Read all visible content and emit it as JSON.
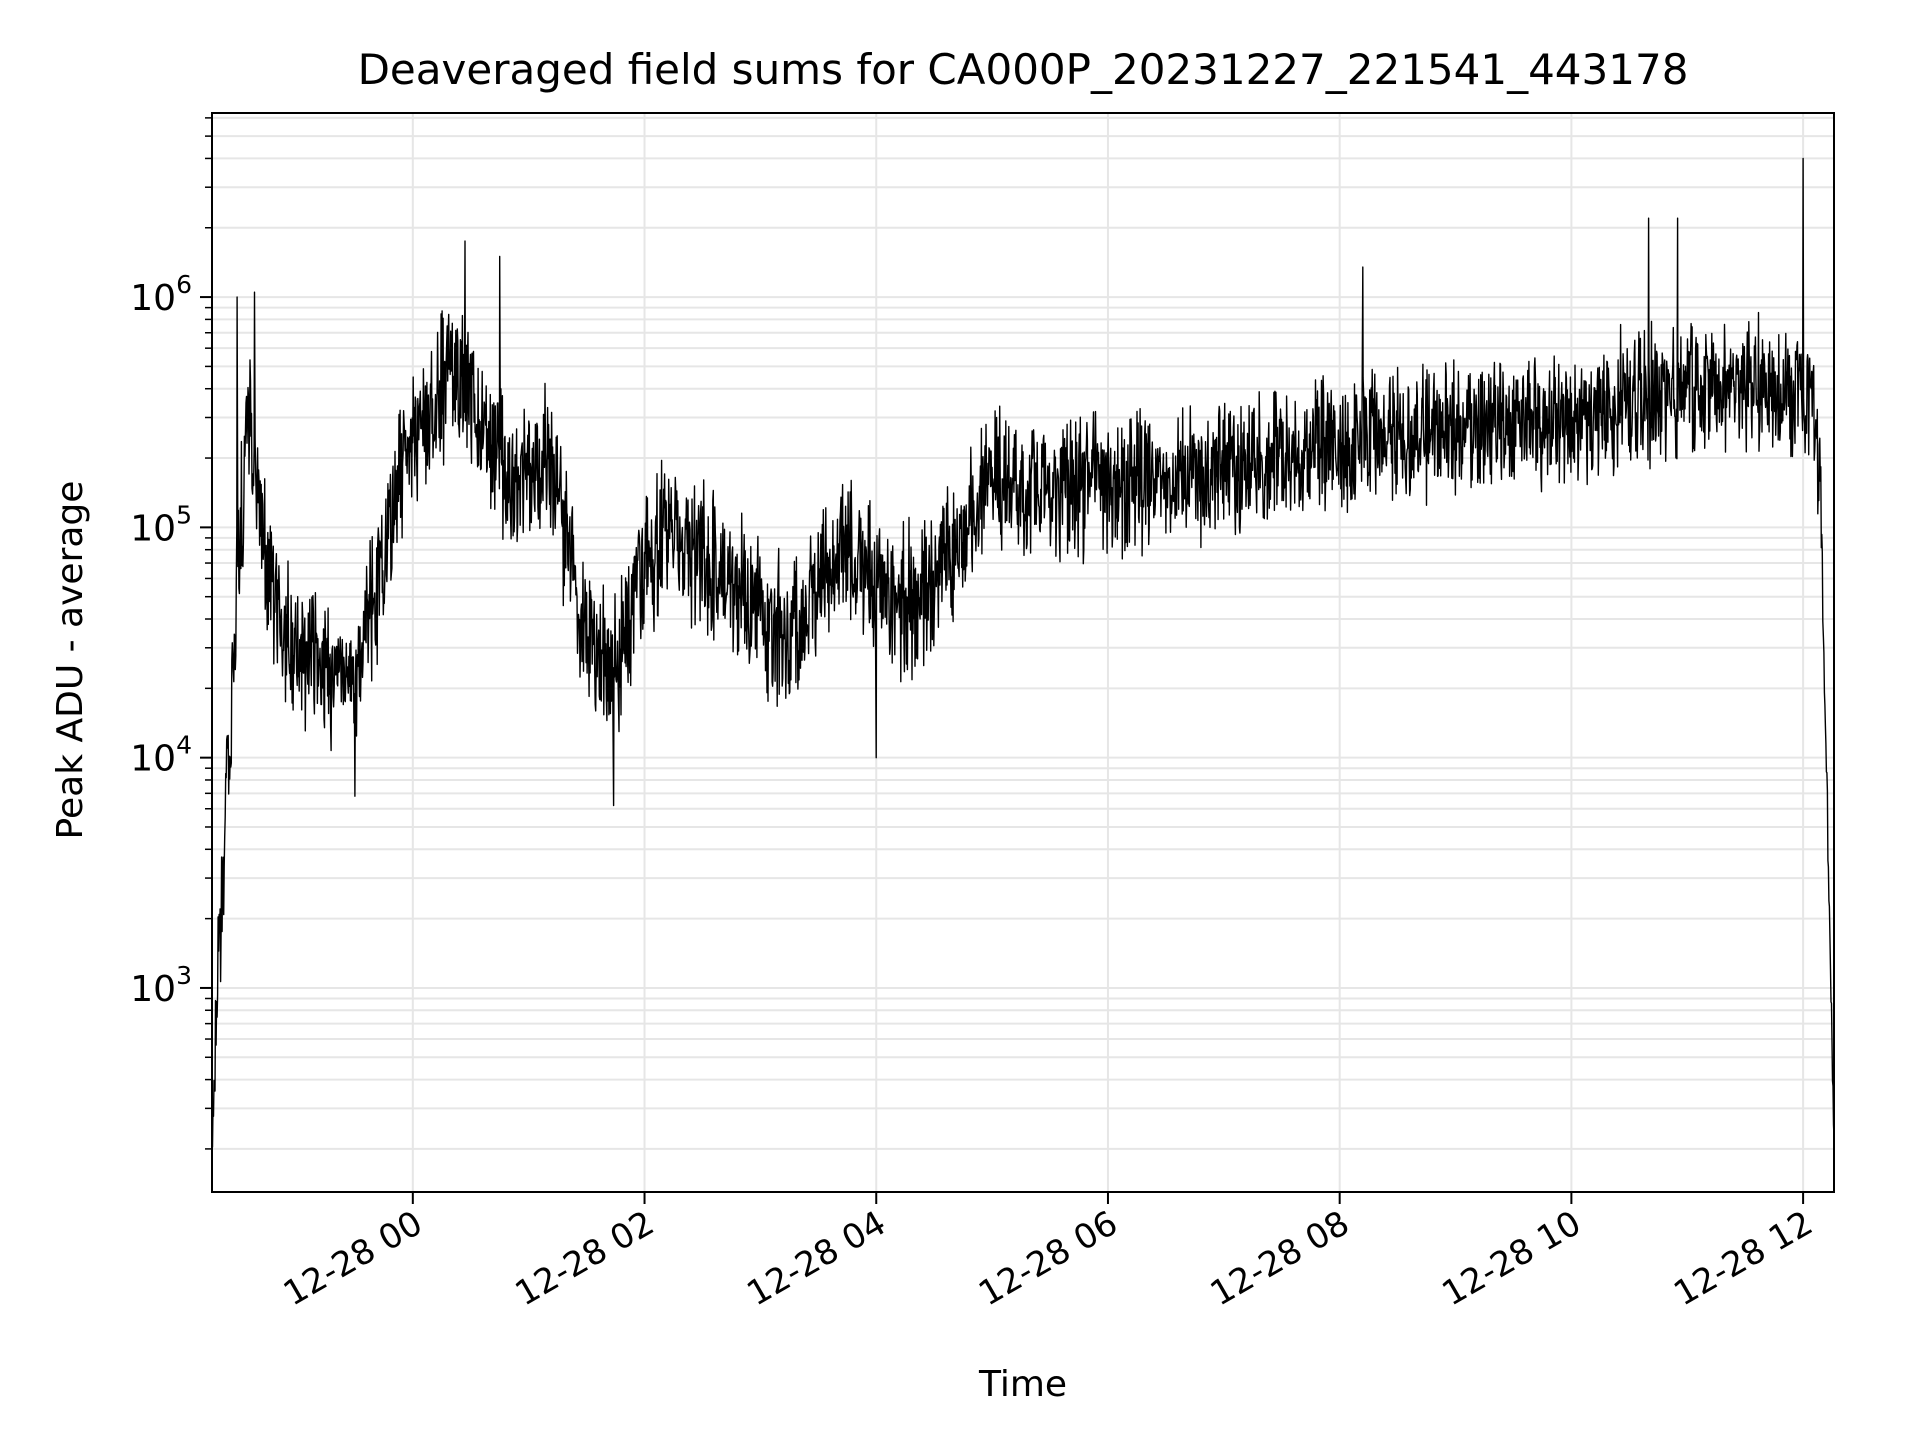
{
  "chart_data": {
    "type": "line",
    "title": "Deaveraged field sums for CA000P_20231227_221541_443178",
    "xlabel": "Time",
    "ylabel": "Peak ADU - average",
    "yscale": "log",
    "ylim": [
      130,
      6300000
    ],
    "xlim": [
      "2023-12-27 22:16",
      "2023-12-28 12:16"
    ],
    "grid": true,
    "line_color": "#000000",
    "grid_color": "#e6e6e6",
    "x_ticks": [
      {
        "value": "2023-12-28 00:00",
        "label": "12-28 00"
      },
      {
        "value": "2023-12-28 02:00",
        "label": "12-28 02"
      },
      {
        "value": "2023-12-28 04:00",
        "label": "12-28 04"
      },
      {
        "value": "2023-12-28 06:00",
        "label": "12-28 06"
      },
      {
        "value": "2023-12-28 08:00",
        "label": "12-28 08"
      },
      {
        "value": "2023-12-28 10:00",
        "label": "12-28 10"
      },
      {
        "value": "2023-12-28 12:00",
        "label": "12-28 12"
      }
    ],
    "y_ticks": [
      {
        "value": 1000,
        "base": "10",
        "exp": "3"
      },
      {
        "value": 10000,
        "base": "10",
        "exp": "4"
      },
      {
        "value": 100000,
        "base": "10",
        "exp": "5"
      },
      {
        "value": 1000000,
        "base": "10",
        "exp": "6"
      }
    ],
    "series": [
      {
        "x": [
          "2023-12-27 22:16",
          "2023-12-27 22:19",
          "2023-12-27 22:22",
          "2023-12-27 22:25",
          "2023-12-27 22:30",
          "2023-12-27 22:35",
          "2023-12-27 22:40",
          "2023-12-27 22:45",
          "2023-12-27 22:50",
          "2023-12-27 22:55",
          "2023-12-27 23:00",
          "2023-12-27 23:10",
          "2023-12-27 23:20",
          "2023-12-27 23:30",
          "2023-12-27 23:40",
          "2023-12-27 23:50",
          "2023-12-28 00:00",
          "2023-12-28 00:10",
          "2023-12-28 00:20",
          "2023-12-28 00:30",
          "2023-12-28 00:40",
          "2023-12-28 00:50",
          "2023-12-28 01:00",
          "2023-12-28 01:10",
          "2023-12-28 01:20",
          "2023-12-28 01:30",
          "2023-12-28 01:40",
          "2023-12-28 01:50",
          "2023-12-28 02:00",
          "2023-12-28 02:15",
          "2023-12-28 02:30",
          "2023-12-28 02:45",
          "2023-12-28 03:00",
          "2023-12-28 03:15",
          "2023-12-28 03:30",
          "2023-12-28 03:45",
          "2023-12-28 04:00",
          "2023-12-28 04:15",
          "2023-12-28 04:30",
          "2023-12-28 04:45",
          "2023-12-28 05:00",
          "2023-12-28 05:15",
          "2023-12-28 05:30",
          "2023-12-28 06:00",
          "2023-12-28 06:30",
          "2023-12-28 07:00",
          "2023-12-28 07:30",
          "2023-12-28 08:00",
          "2023-12-28 08:30",
          "2023-12-28 09:00",
          "2023-12-28 09:30",
          "2023-12-28 10:00",
          "2023-12-28 10:30",
          "2023-12-28 11:00",
          "2023-12-28 11:30",
          "2023-12-28 11:50",
          "2023-12-28 12:05",
          "2023-12-28 12:09",
          "2023-12-28 12:12",
          "2023-12-28 12:14",
          "2023-12-28 12:16"
        ],
        "y": [
          200,
          1200,
          3000,
          15000,
          80000,
          400000,
          150000,
          70000,
          45000,
          35000,
          30000,
          25000,
          22000,
          25000,
          45000,
          120000,
          250000,
          350000,
          450000,
          380000,
          250000,
          150000,
          180000,
          200000,
          90000,
          40000,
          25000,
          35000,
          70000,
          100000,
          70000,
          55000,
          40000,
          30000,
          60000,
          80000,
          55000,
          45000,
          60000,
          90000,
          160000,
          160000,
          140000,
          150000,
          160000,
          180000,
          200000,
          230000,
          250000,
          270000,
          290000,
          300000,
          350000,
          380000,
          400000,
          400000,
          380000,
          150000,
          10000,
          1500,
          220
        ],
        "spread": [
          1.3,
          2.2,
          2.5,
          3.0,
          3.0,
          3.0,
          3.0,
          2.8,
          2.8,
          2.6,
          2.6,
          2.6,
          2.6,
          2.6,
          2.7,
          2.8,
          2.6,
          2.8,
          2.6,
          2.6,
          2.7,
          2.8,
          2.8,
          2.8,
          3.0,
          2.8,
          3.0,
          2.8,
          2.8,
          2.8,
          2.8,
          2.8,
          2.8,
          2.8,
          2.8,
          2.8,
          3.0,
          2.8,
          2.8,
          2.8,
          2.5,
          2.5,
          2.5,
          2.5,
          2.5,
          2.4,
          2.4,
          2.4,
          2.4,
          2.4,
          2.4,
          2.5,
          2.5,
          2.5,
          2.4,
          2.4,
          2.2,
          2.0,
          1.5,
          1.3,
          1.2
        ],
        "spikes": [
          {
            "x": "2023-12-27 22:29",
            "y": 1000000
          },
          {
            "x": "2023-12-27 22:38",
            "y": 1050000
          },
          {
            "x": "2023-12-27 23:30",
            "y": 6800
          },
          {
            "x": "2023-12-28 00:27",
            "y": 1750000
          },
          {
            "x": "2023-12-28 00:45",
            "y": 1500000
          },
          {
            "x": "2023-12-28 01:44",
            "y": 6200
          },
          {
            "x": "2023-12-28 04:00",
            "y": 10000
          },
          {
            "x": "2023-12-28 08:12",
            "y": 1350000
          },
          {
            "x": "2023-12-28 10:40",
            "y": 2200000
          },
          {
            "x": "2023-12-28 10:55",
            "y": 2200000
          },
          {
            "x": "2023-12-28 12:00",
            "y": 4000000
          }
        ]
      }
    ]
  }
}
